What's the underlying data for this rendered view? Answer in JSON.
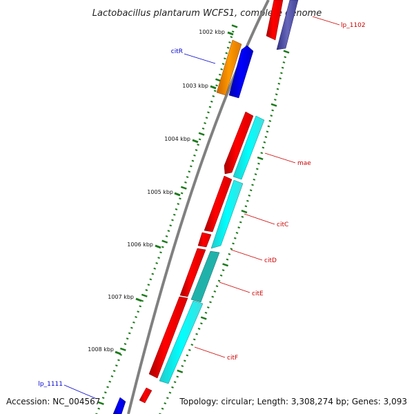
{
  "title": "Lactobacillus plantarum WCFS1, complete genome",
  "footer": {
    "accession": "Accession: NC_004567",
    "topology": "Topology: circular; Length: 3,308,274 bp; Genes: 3,093"
  },
  "kbp_labels": [
    "1002 kbp",
    "1003 kbp",
    "1004 kbp",
    "1005 kbp",
    "1006 kbp",
    "1007 kbp",
    "1008 kbp"
  ],
  "gene_labels": {
    "lp_1102": "lp_1102",
    "citR": "citR",
    "mae": "mae",
    "citC": "citC",
    "citD": "citD",
    "citE": "citE",
    "citF": "citF",
    "lp_1111": "lp_1111"
  },
  "colors": {
    "backbone": "#808080",
    "tick": "#1a7a1a",
    "gene_red": "#ff0000",
    "gene_cyan": "#00ffff",
    "gene_blue": "#0000ee",
    "gene_orange": "#ff8c00",
    "gene_purple": "#5555aa",
    "gene_teal": "#20b2aa",
    "label_red": "#cc0000",
    "label_blue": "#0000cc"
  }
}
